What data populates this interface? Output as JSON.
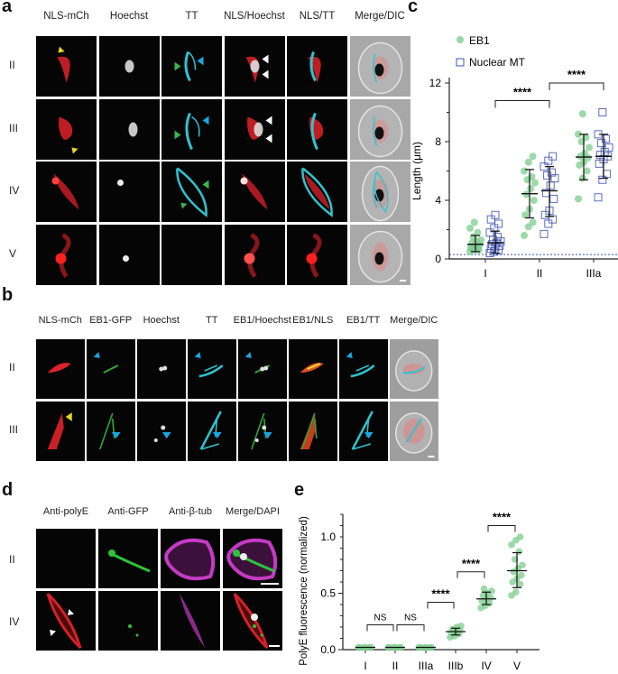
{
  "panels": {
    "a": {
      "letter": "a",
      "columns": [
        "NLS-mCh",
        "Hoechst",
        "TT",
        "NLS/Hoechst",
        "NLS/TT",
        "Merge/DIC"
      ],
      "rows": [
        "II",
        "III",
        "IV",
        "V"
      ]
    },
    "b": {
      "letter": "b",
      "columns": [
        "NLS-mCh",
        "EB1-GFP",
        "Hoechst",
        "TT",
        "EB1/Hoechst",
        "EB1/NLS",
        "EB1/TT",
        "Merge/DIC"
      ],
      "rows": [
        "II",
        "III"
      ]
    },
    "c": {
      "letter": "c"
    },
    "d": {
      "letter": "d",
      "columns": [
        "Anti-polyE",
        "Anti-GFP",
        "Anti-β-tub",
        "Merge/DAPI"
      ],
      "rows": [
        "II",
        "IV"
      ]
    },
    "e": {
      "letter": "e"
    }
  },
  "colors": {
    "eb1_green": "#7dcc8e",
    "nuclear_mt_blue": "#3f51b5",
    "tt_cyan": "#2ec4d0",
    "nls_red": "#e0222a",
    "polye_red": "#d8202a",
    "btub_magenta": "#c43bc4",
    "arrow_yellow": "#e5d81c",
    "arrow_green": "#3cb44b",
    "arrow_blue": "#1aa6e0",
    "arrow_white": "#ffffff"
  },
  "chart_data": [
    {
      "panel": "c",
      "type": "scatter",
      "title": "",
      "xlabel": "",
      "ylabel": "Length (μm)",
      "ylim": [
        0,
        12
      ],
      "yticks": [
        0,
        4,
        8,
        12
      ],
      "categories": [
        "I",
        "II",
        "IIIa"
      ],
      "legend": [
        "EB1",
        "Nuclear MT"
      ],
      "legend_position": "top-left",
      "series": [
        {
          "name": "EB1",
          "marker": "filled-circle",
          "color": "#7dcc8e",
          "mean": [
            1.0,
            4.45,
            6.95
          ],
          "sd_low": [
            0.5,
            2.8,
            5.4
          ],
          "sd_high": [
            1.6,
            6.1,
            8.5
          ],
          "points": [
            [
              0.5,
              0.6,
              0.7,
              0.8,
              0.9,
              1.0,
              1.1,
              1.2,
              1.3,
              1.5,
              1.8,
              2.1,
              2.5,
              0.6,
              0.7,
              0.9
            ],
            [
              1.6,
              2.2,
              2.5,
              3.0,
              3.4,
              4.0,
              4.4,
              4.8,
              5.2,
              5.4,
              5.6,
              6.0,
              6.6,
              7.0
            ],
            [
              4.1,
              5.5,
              6.0,
              6.4,
              6.6,
              6.9,
              7.0,
              7.2,
              7.6,
              8.0,
              8.3,
              8.5,
              9.9
            ]
          ]
        },
        {
          "name": "Nuclear MT",
          "marker": "open-square",
          "color": "#3f51b5",
          "mean": [
            1.1,
            4.65,
            7.0
          ],
          "sd_low": [
            0.4,
            2.9,
            5.5
          ],
          "sd_high": [
            1.9,
            6.3,
            8.5
          ],
          "points": [
            [
              0.4,
              0.5,
              0.6,
              0.7,
              0.8,
              0.9,
              1.0,
              1.1,
              1.2,
              1.3,
              1.5,
              1.8,
              2.1,
              2.4,
              2.7,
              3.0
            ],
            [
              1.7,
              2.4,
              2.7,
              3.0,
              3.3,
              4.1,
              4.5,
              5.0,
              5.5,
              5.7,
              5.9,
              6.3,
              6.7,
              7.0
            ],
            [
              4.2,
              5.4,
              5.8,
              6.5,
              6.8,
              7.0,
              7.1,
              7.3,
              7.6,
              7.9,
              8.2,
              8.5,
              10.0
            ]
          ]
        }
      ],
      "reference_line": {
        "y": 0.3,
        "style": "dotted",
        "color": "#3f51b5"
      },
      "annotations": [
        {
          "text": "****",
          "from": "I (Nuclear MT)",
          "to": "II (Nuclear MT)"
        },
        {
          "text": "****",
          "from": "II (Nuclear MT)",
          "to": "IIIa (Nuclear MT)"
        }
      ],
      "grid": false
    },
    {
      "panel": "e",
      "type": "scatter",
      "title": "",
      "xlabel": "",
      "ylabel": "PolyE fluorescence (normalized)",
      "ylim": [
        0,
        1.2
      ],
      "yticks": [
        0.0,
        0.5,
        1.0
      ],
      "categories": [
        "I",
        "II",
        "IIIa",
        "IIIb",
        "IV",
        "V"
      ],
      "series": [
        {
          "name": "PolyE",
          "marker": "filled-circle",
          "color": "#7dcc8e",
          "mean": [
            0.02,
            0.02,
            0.02,
            0.16,
            0.45,
            0.7
          ],
          "sd_low": [
            0.01,
            0.01,
            0.01,
            0.13,
            0.4,
            0.55
          ],
          "sd_high": [
            0.03,
            0.03,
            0.03,
            0.19,
            0.51,
            0.86
          ],
          "points": [
            [
              0.02,
              0.02,
              0.02,
              0.02,
              0.02,
              0.02
            ],
            [
              0.02,
              0.02,
              0.02,
              0.02,
              0.02,
              0.02
            ],
            [
              0.02,
              0.02,
              0.02,
              0.02,
              0.02,
              0.02
            ],
            [
              0.11,
              0.12,
              0.14,
              0.15,
              0.16,
              0.17,
              0.18,
              0.2,
              0.21
            ],
            [
              0.37,
              0.39,
              0.41,
              0.43,
              0.45,
              0.46,
              0.48,
              0.5,
              0.52,
              0.54
            ],
            [
              0.48,
              0.51,
              0.58,
              0.6,
              0.63,
              0.66,
              0.69,
              0.72,
              0.75,
              0.8,
              0.87,
              0.93,
              0.97,
              1.0
            ]
          ]
        }
      ],
      "annotations": [
        {
          "text": "NS",
          "from": "I",
          "to": "II"
        },
        {
          "text": "NS",
          "from": "II",
          "to": "IIIa"
        },
        {
          "text": "****",
          "from": "IIIa",
          "to": "IIIb"
        },
        {
          "text": "****",
          "from": "IIIb",
          "to": "IV"
        },
        {
          "text": "****",
          "from": "IV",
          "to": "V"
        }
      ],
      "grid": false
    }
  ]
}
